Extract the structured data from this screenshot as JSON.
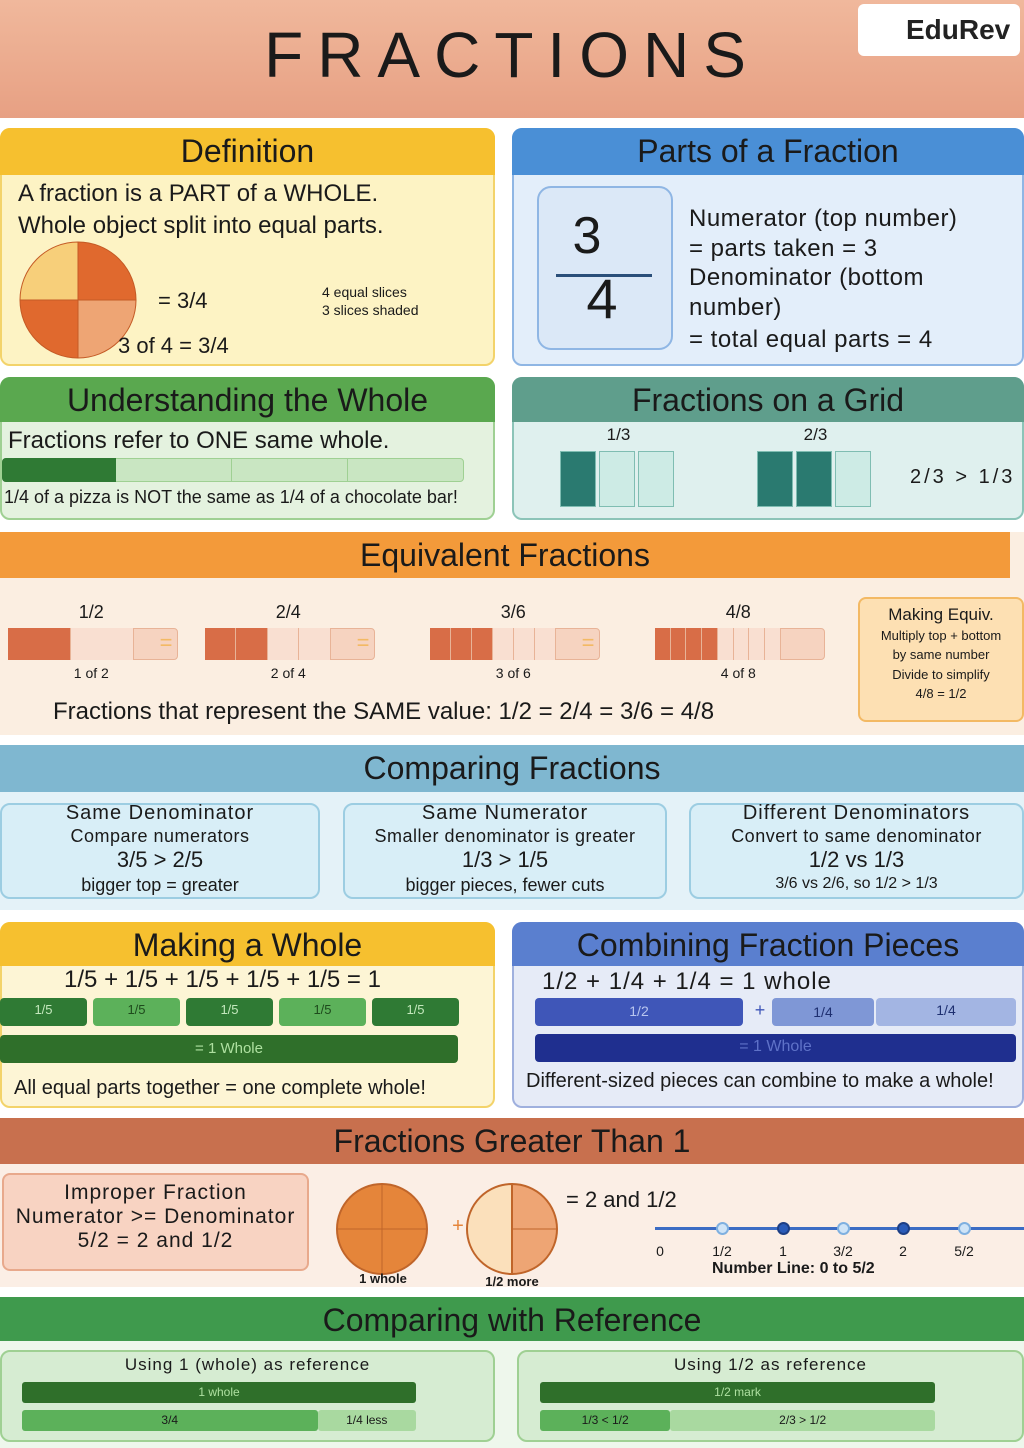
{
  "header": {
    "title": "FRACTIONS",
    "logo": "EduRev"
  },
  "definition": {
    "title": "Definition",
    "lines": [
      "A fraction is a PART of a WHOLE.",
      "Whole object split into equal parts."
    ],
    "equation": "= 3/4",
    "note": [
      "4 equal slices",
      "3 slices shaded"
    ],
    "caption": "3 of 4 = 3/4"
  },
  "parts": {
    "title": "Parts of a Fraction",
    "numerator": "3",
    "denominator": "4",
    "lines": [
      "Numerator (top number)",
      "= parts taken = 3",
      "Denominator (bottom",
      "number)",
      "= total equal parts = 4"
    ]
  },
  "whole": {
    "title": "Understanding the Whole",
    "text": "Fractions refer to ONE same whole.",
    "caption": "1/4 of a pizza is NOT the same as 1/4 of a chocolate bar!"
  },
  "grid": {
    "title": "Fractions on a Grid",
    "labels": [
      "1/3",
      "2/3"
    ],
    "comparison": "2/3 >  1/3"
  },
  "equivalent": {
    "title": "Equivalent Fractions",
    "items": [
      {
        "label": "1/2",
        "caption": "1 of 2"
      },
      {
        "label": "2/4",
        "caption": "2 of 4"
      },
      {
        "label": "3/6",
        "caption": "3 of 6"
      },
      {
        "label": "4/8",
        "caption": "4 of 8"
      }
    ],
    "equals": "=",
    "summary": "Fractions that represent the SAME value: 1/2 = 2/4 = 3/6 = 4/8",
    "tip": [
      "Making Equiv.",
      "Multiply top + bottom",
      "by same number",
      "Divide to simplify",
      "4/8 = 1/2"
    ]
  },
  "comparing": {
    "title": "Comparing Fractions",
    "cards": [
      {
        "title": "Same Denominator",
        "rule": "Compare numerators",
        "example": "3/5 > 2/5",
        "note": "bigger top = greater"
      },
      {
        "title": "Same Numerator",
        "rule": "Smaller denominator is greater",
        "example": "1/3 > 1/5",
        "note": "bigger pieces, fewer cuts"
      },
      {
        "title": "Different Denominators",
        "rule": "Convert to same denominator",
        "example": "1/2 vs 1/3",
        "note": "3/6 vs 2/6, so 1/2 > 1/3"
      }
    ]
  },
  "making_whole": {
    "title": "Making a Whole",
    "equation": "1/5 + 1/5 + 1/5 + 1/5 + 1/5 = 1",
    "pieces": [
      "1/5",
      "1/5",
      "1/5",
      "1/5",
      "1/5"
    ],
    "total": "= 1 Whole",
    "caption": "All equal parts together = one complete whole!"
  },
  "combining": {
    "title": "Combining Fraction Pieces",
    "equation": "1/2 + 1/4 + 1/4 = 1 whole",
    "pieces": [
      "1/2",
      "1/4",
      "1/4"
    ],
    "plus": "+",
    "total": "= 1 Whole",
    "caption": "Different-sized pieces can combine to make a whole!"
  },
  "greater": {
    "title": "Fractions Greater Than 1",
    "box": [
      "Improper Fraction",
      "Numerator >= Denominator",
      "5/2 = 2 and 1/2"
    ],
    "plus": "+",
    "result": "= 2 and 1/2",
    "circle_labels": [
      "1 whole",
      "1/2 more"
    ],
    "number_line": {
      "ticks": [
        "0",
        "1/2",
        "1",
        "3/2",
        "2",
        "5/2"
      ],
      "label": "Number Line: 0 to 5/2"
    }
  },
  "reference": {
    "title": "Comparing with Reference",
    "cards": [
      {
        "title": "Using 1 (whole) as reference",
        "bar": "1 whole",
        "parts": [
          "3/4",
          "1/4 less"
        ]
      },
      {
        "title": "Using 1/2 as reference",
        "bar": "1/2 mark",
        "parts": [
          "1/3 < 1/2",
          "2/3 > 1/2"
        ]
      }
    ]
  }
}
